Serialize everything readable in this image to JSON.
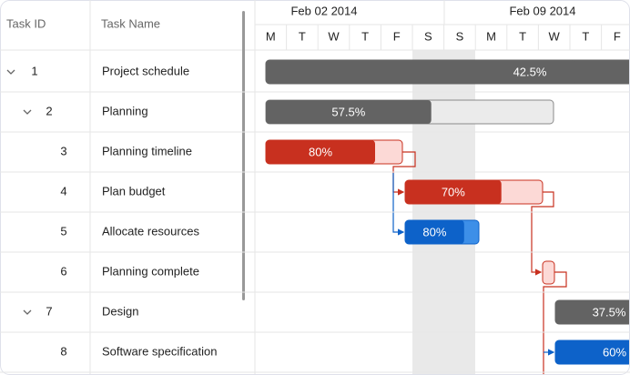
{
  "grid": {
    "columns": [
      "Task ID",
      "Task Name"
    ]
  },
  "timeline": {
    "weeks": [
      "Feb 02 2014",
      "Feb 09 2014"
    ],
    "days": [
      "M",
      "T",
      "W",
      "T",
      "F",
      "S",
      "S",
      "M",
      "T",
      "W",
      "T",
      "F"
    ]
  },
  "rows": [
    {
      "id": 1,
      "name": "Project schedule",
      "progress": 42.5,
      "label": "42.5%"
    },
    {
      "id": 2,
      "name": "Planning",
      "progress": 57.5,
      "label": "57.5%"
    },
    {
      "id": 3,
      "name": "Planning timeline",
      "progress": 80,
      "label": "80%"
    },
    {
      "id": 4,
      "name": "Plan budget",
      "progress": 70,
      "label": "70%"
    },
    {
      "id": 5,
      "name": "Allocate resources",
      "progress": 80,
      "label": "80%"
    },
    {
      "id": 6,
      "name": "Planning complete"
    },
    {
      "id": 7,
      "name": "Design",
      "progress": 37.5,
      "label": "37.5%"
    },
    {
      "id": 8,
      "name": "Software specification",
      "progress": 60,
      "label": "60%"
    }
  ]
}
